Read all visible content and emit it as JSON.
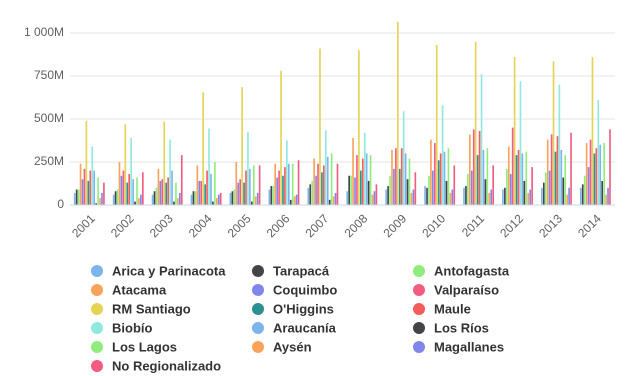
{
  "chart_data": {
    "type": "bar",
    "categories": [
      "2001",
      "2002",
      "2003",
      "2004",
      "2005",
      "2006",
      "2007",
      "2008",
      "2009",
      "2010",
      "2011",
      "2012",
      "2013",
      "2014"
    ],
    "ylim": [
      0,
      1075
    ],
    "yticks": [
      0,
      {
        "value": 250,
        "label": "250M"
      },
      {
        "value": 500,
        "label": "500M"
      },
      {
        "value": 750,
        "label": "750M"
      },
      {
        "value": 1000,
        "label": "1 000M"
      }
    ],
    "grid": true,
    "legend": "bottom",
    "series": [
      {
        "name": "Arica y Parinacota",
        "color": "#7cb5ec",
        "values": [
          70,
          60,
          60,
          60,
          70,
          90,
          100,
          80,
          90,
          110,
          100,
          90,
          100,
          100
        ]
      },
      {
        "name": "Tarapacá",
        "color": "#434348",
        "values": [
          90,
          80,
          80,
          80,
          80,
          110,
          120,
          170,
          110,
          100,
          110,
          100,
          130,
          120
        ]
      },
      {
        "name": "Antofagasta",
        "color": "#90ed7d",
        "values": [
          90,
          90,
          100,
          80,
          90,
          110,
          140,
          170,
          170,
          170,
          180,
          210,
          190,
          170
        ]
      },
      {
        "name": "Atacama",
        "color": "#f7a35c",
        "values": [
          240,
          250,
          210,
          230,
          250,
          240,
          270,
          390,
          320,
          380,
          410,
          340,
          380,
          360
        ]
      },
      {
        "name": "Coquimbo",
        "color": "#8085e9",
        "values": [
          150,
          170,
          140,
          140,
          130,
          160,
          170,
          160,
          210,
          200,
          200,
          180,
          200,
          220
        ]
      },
      {
        "name": "Valparaíso",
        "color": "#f15c80",
        "values": [
          210,
          200,
          150,
          140,
          150,
          200,
          240,
          290,
          330,
          360,
          440,
          450,
          410,
          380
        ]
      },
      {
        "name": "RM Santiago",
        "color": "#e4d354",
        "values": [
          490,
          470,
          485,
          655,
          685,
          780,
          910,
          900,
          1065,
          930,
          950,
          860,
          835,
          860
        ]
      },
      {
        "name": "O'Higgins",
        "color": "#2b908f",
        "values": [
          140,
          130,
          130,
          120,
          130,
          170,
          190,
          200,
          210,
          260,
          290,
          290,
          310,
          300
        ]
      },
      {
        "name": "Maule",
        "color": "#f45b5b",
        "values": [
          200,
          180,
          160,
          200,
          200,
          220,
          230,
          270,
          330,
          300,
          430,
          320,
          400,
          330
        ]
      },
      {
        "name": "Biobío",
        "color": "#91e8e1",
        "values": [
          340,
          390,
          380,
          445,
          425,
          375,
          435,
          420,
          545,
          580,
          760,
          720,
          700,
          610
        ]
      },
      {
        "name": "Araucanía",
        "color": "#7cb5ec",
        "values": [
          200,
          150,
          200,
          180,
          210,
          240,
          280,
          300,
          300,
          310,
          320,
          300,
          320,
          350
        ]
      },
      {
        "name": "Los Ríos",
        "color": "#434348",
        "values": [
          10,
          20,
          20,
          20,
          20,
          30,
          30,
          140,
          150,
          140,
          150,
          140,
          160,
          140
        ]
      },
      {
        "name": "Los Lagos",
        "color": "#90ed7d",
        "values": [
          160,
          160,
          130,
          250,
          230,
          240,
          300,
          290,
          270,
          330,
          330,
          310,
          290,
          360
        ]
      },
      {
        "name": "Aysén",
        "color": "#f7a35c",
        "values": [
          40,
          40,
          40,
          40,
          50,
          50,
          50,
          60,
          70,
          70,
          70,
          70,
          60,
          60
        ]
      },
      {
        "name": "Magallanes",
        "color": "#8085e9",
        "values": [
          70,
          60,
          70,
          60,
          70,
          60,
          70,
          80,
          90,
          90,
          90,
          90,
          100,
          100
        ]
      },
      {
        "name": "No Regionalizado",
        "color": "#f15c80",
        "values": [
          130,
          190,
          290,
          70,
          230,
          260,
          240,
          120,
          190,
          230,
          230,
          220,
          420,
          440
        ]
      }
    ]
  }
}
